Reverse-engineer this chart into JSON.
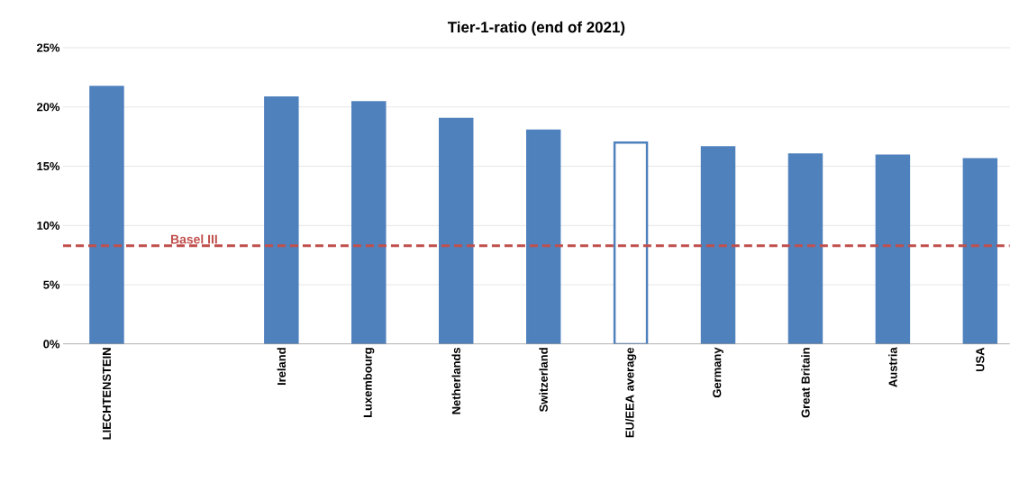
{
  "chart_data": {
    "type": "bar",
    "title": "Tier-1-ratio (end of 2021)",
    "categories": [
      "LIECHTENSTEIN",
      null,
      "Ireland",
      "Luxembourg",
      "Netherlands",
      "Switzerland",
      "EU/EEA average",
      "Germany",
      "Great Britain",
      "Austria",
      "USA"
    ],
    "series": [
      {
        "color": "#4f81bd",
        "values": [
          21.7,
          null,
          20.8,
          20.4,
          19.0,
          18.0,
          17.0,
          16.6,
          16.0,
          15.9,
          15.6
        ],
        "colors": [
          "#4f81bd",
          null,
          "#4f81bd",
          "#4f81bd",
          "#4f81bd",
          "#4f81bd",
          "#ffffff",
          "#4f81bd",
          "#4f81bd",
          "#4f81bd",
          "#4f81bd"
        ]
      }
    ],
    "ylim": [
      0,
      25
    ],
    "yticks": [
      {
        "value": 0,
        "label": "0%"
      },
      {
        "value": 5,
        "label": "5%"
      },
      {
        "value": 10,
        "label": "10%"
      },
      {
        "value": 15,
        "label": "15%"
      },
      {
        "value": 20,
        "label": "20%"
      },
      {
        "value": 25,
        "label": "25%"
      }
    ],
    "grid": "y",
    "ref_lines": [
      {
        "axis": "y",
        "value": 8.3,
        "label": "Basel III",
        "color": "#c0504d",
        "line_style": "dashed"
      }
    ]
  }
}
